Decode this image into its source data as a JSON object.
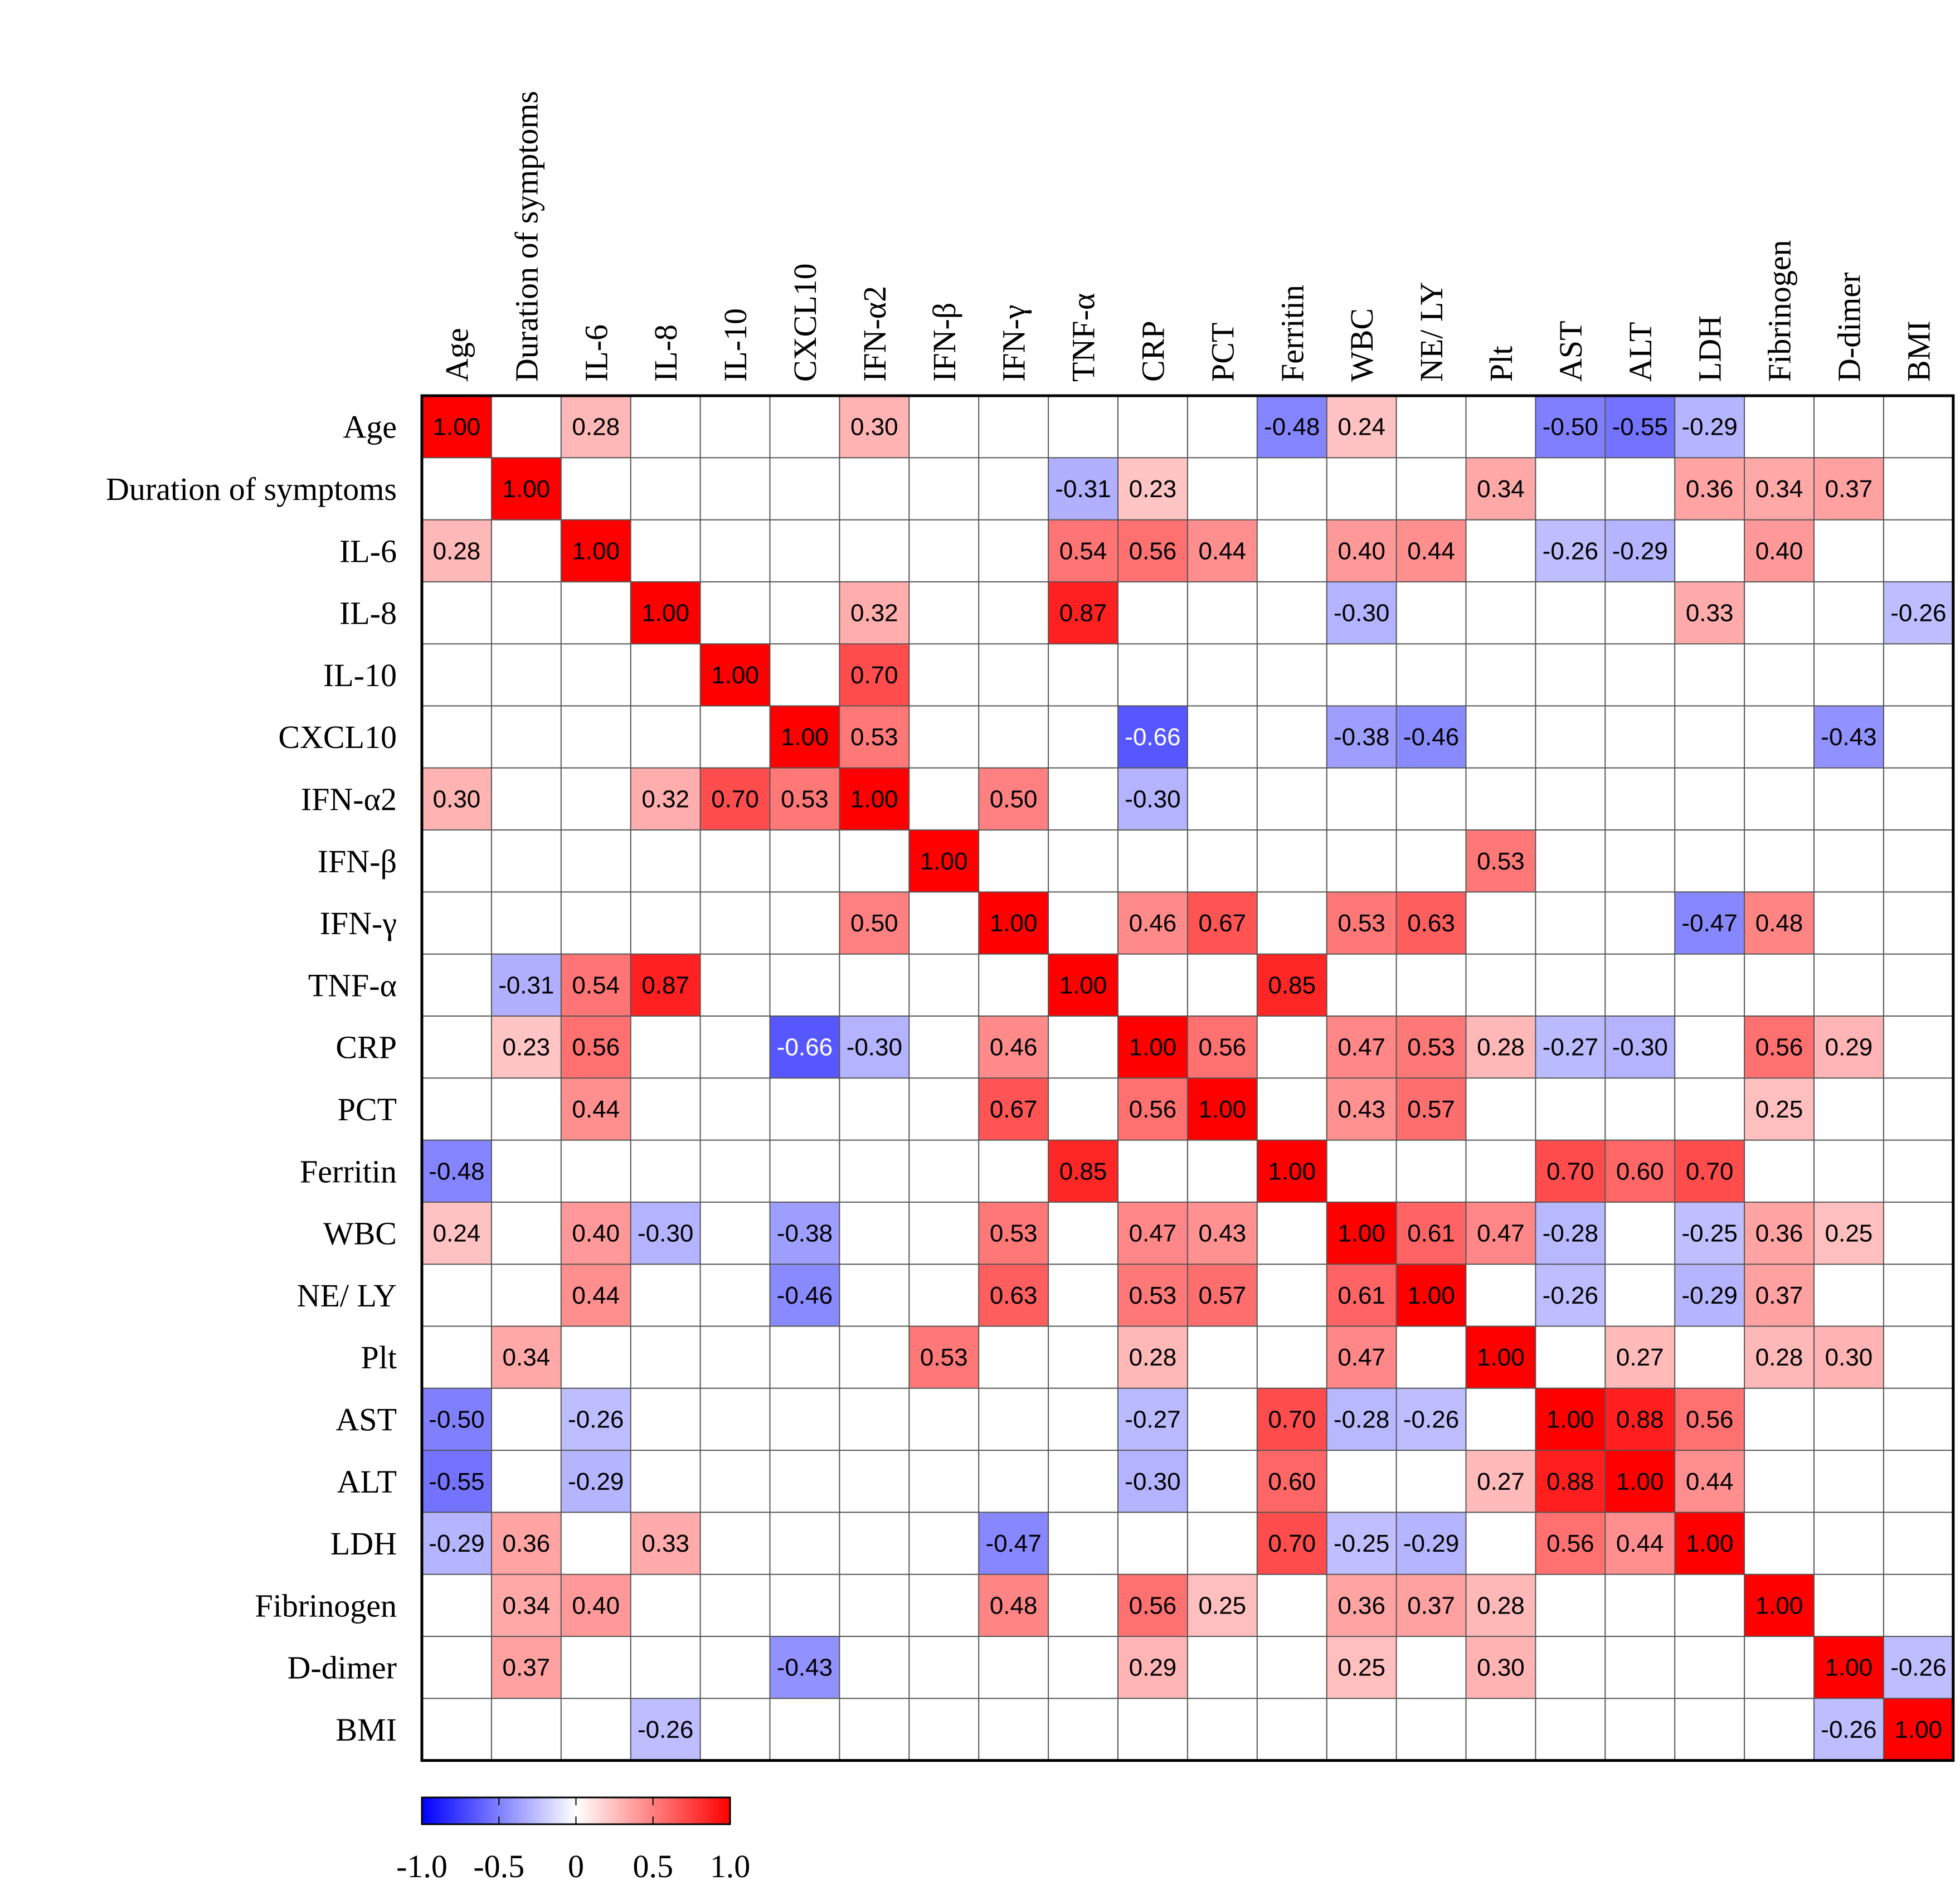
{
  "chart_data": {
    "type": "heatmap",
    "title": "",
    "labels": [
      "Age",
      "Duration of symptoms",
      "IL-6",
      "IL-8",
      "IL-10",
      "CXCL10",
      "IFN-α2",
      "IFN-β",
      "IFN-γ",
      "TNF-α",
      "CRP",
      "PCT",
      "Ferritin",
      "WBC",
      "NE/ LY",
      "Plt",
      "AST",
      "ALT",
      "LDH",
      "Fibrinogen",
      "D-dimer",
      "BMI"
    ],
    "cells": [
      {
        "row": 0,
        "col": 0,
        "value": 1.0
      },
      {
        "row": 0,
        "col": 2,
        "value": 0.28
      },
      {
        "row": 0,
        "col": 6,
        "value": 0.3
      },
      {
        "row": 0,
        "col": 12,
        "value": -0.48
      },
      {
        "row": 0,
        "col": 13,
        "value": 0.24
      },
      {
        "row": 0,
        "col": 16,
        "value": -0.5
      },
      {
        "row": 0,
        "col": 17,
        "value": -0.55
      },
      {
        "row": 0,
        "col": 18,
        "value": -0.29
      },
      {
        "row": 1,
        "col": 1,
        "value": 1.0
      },
      {
        "row": 1,
        "col": 9,
        "value": -0.31
      },
      {
        "row": 1,
        "col": 10,
        "value": 0.23
      },
      {
        "row": 1,
        "col": 15,
        "value": 0.34
      },
      {
        "row": 1,
        "col": 18,
        "value": 0.36
      },
      {
        "row": 1,
        "col": 19,
        "value": 0.34
      },
      {
        "row": 1,
        "col": 20,
        "value": 0.37
      },
      {
        "row": 2,
        "col": 0,
        "value": 0.28
      },
      {
        "row": 2,
        "col": 2,
        "value": 1.0
      },
      {
        "row": 2,
        "col": 9,
        "value": 0.54
      },
      {
        "row": 2,
        "col": 10,
        "value": 0.56
      },
      {
        "row": 2,
        "col": 11,
        "value": 0.44
      },
      {
        "row": 2,
        "col": 13,
        "value": 0.4
      },
      {
        "row": 2,
        "col": 14,
        "value": 0.44
      },
      {
        "row": 2,
        "col": 16,
        "value": -0.26
      },
      {
        "row": 2,
        "col": 17,
        "value": -0.29
      },
      {
        "row": 2,
        "col": 19,
        "value": 0.4
      },
      {
        "row": 3,
        "col": 3,
        "value": 1.0
      },
      {
        "row": 3,
        "col": 6,
        "value": 0.32
      },
      {
        "row": 3,
        "col": 9,
        "value": 0.87
      },
      {
        "row": 3,
        "col": 13,
        "value": -0.3
      },
      {
        "row": 3,
        "col": 18,
        "value": 0.33
      },
      {
        "row": 3,
        "col": 21,
        "value": -0.26
      },
      {
        "row": 4,
        "col": 4,
        "value": 1.0
      },
      {
        "row": 4,
        "col": 6,
        "value": 0.7
      },
      {
        "row": 5,
        "col": 5,
        "value": 1.0
      },
      {
        "row": 5,
        "col": 6,
        "value": 0.53
      },
      {
        "row": 5,
        "col": 10,
        "value": -0.66
      },
      {
        "row": 5,
        "col": 13,
        "value": -0.38
      },
      {
        "row": 5,
        "col": 14,
        "value": -0.46
      },
      {
        "row": 5,
        "col": 20,
        "value": -0.43
      },
      {
        "row": 6,
        "col": 0,
        "value": 0.3
      },
      {
        "row": 6,
        "col": 3,
        "value": 0.32
      },
      {
        "row": 6,
        "col": 4,
        "value": 0.7
      },
      {
        "row": 6,
        "col": 5,
        "value": 0.53
      },
      {
        "row": 6,
        "col": 6,
        "value": 1.0
      },
      {
        "row": 6,
        "col": 8,
        "value": 0.5
      },
      {
        "row": 6,
        "col": 10,
        "value": -0.3
      },
      {
        "row": 7,
        "col": 7,
        "value": 1.0
      },
      {
        "row": 7,
        "col": 15,
        "value": 0.53
      },
      {
        "row": 8,
        "col": 6,
        "value": 0.5
      },
      {
        "row": 8,
        "col": 8,
        "value": 1.0
      },
      {
        "row": 8,
        "col": 10,
        "value": 0.46
      },
      {
        "row": 8,
        "col": 11,
        "value": 0.67
      },
      {
        "row": 8,
        "col": 13,
        "value": 0.53
      },
      {
        "row": 8,
        "col": 14,
        "value": 0.63
      },
      {
        "row": 8,
        "col": 18,
        "value": -0.47
      },
      {
        "row": 8,
        "col": 19,
        "value": 0.48
      },
      {
        "row": 9,
        "col": 1,
        "value": -0.31
      },
      {
        "row": 9,
        "col": 2,
        "value": 0.54
      },
      {
        "row": 9,
        "col": 3,
        "value": 0.87
      },
      {
        "row": 9,
        "col": 9,
        "value": 1.0
      },
      {
        "row": 9,
        "col": 12,
        "value": 0.85
      },
      {
        "row": 10,
        "col": 1,
        "value": 0.23
      },
      {
        "row": 10,
        "col": 2,
        "value": 0.56
      },
      {
        "row": 10,
        "col": 5,
        "value": -0.66
      },
      {
        "row": 10,
        "col": 6,
        "value": -0.3
      },
      {
        "row": 10,
        "col": 8,
        "value": 0.46
      },
      {
        "row": 10,
        "col": 10,
        "value": 1.0
      },
      {
        "row": 10,
        "col": 11,
        "value": 0.56
      },
      {
        "row": 10,
        "col": 13,
        "value": 0.47
      },
      {
        "row": 10,
        "col": 14,
        "value": 0.53
      },
      {
        "row": 10,
        "col": 15,
        "value": 0.28
      },
      {
        "row": 10,
        "col": 16,
        "value": -0.27
      },
      {
        "row": 10,
        "col": 17,
        "value": -0.3
      },
      {
        "row": 10,
        "col": 19,
        "value": 0.56
      },
      {
        "row": 10,
        "col": 20,
        "value": 0.29
      },
      {
        "row": 11,
        "col": 2,
        "value": 0.44
      },
      {
        "row": 11,
        "col": 8,
        "value": 0.67
      },
      {
        "row": 11,
        "col": 10,
        "value": 0.56
      },
      {
        "row": 11,
        "col": 11,
        "value": 1.0
      },
      {
        "row": 11,
        "col": 13,
        "value": 0.43
      },
      {
        "row": 11,
        "col": 14,
        "value": 0.57
      },
      {
        "row": 11,
        "col": 19,
        "value": 0.25
      },
      {
        "row": 12,
        "col": 0,
        "value": -0.48
      },
      {
        "row": 12,
        "col": 9,
        "value": 0.85
      },
      {
        "row": 12,
        "col": 12,
        "value": 1.0
      },
      {
        "row": 12,
        "col": 16,
        "value": 0.7
      },
      {
        "row": 12,
        "col": 17,
        "value": 0.6
      },
      {
        "row": 12,
        "col": 18,
        "value": 0.7
      },
      {
        "row": 13,
        "col": 0,
        "value": 0.24
      },
      {
        "row": 13,
        "col": 2,
        "value": 0.4
      },
      {
        "row": 13,
        "col": 3,
        "value": -0.3
      },
      {
        "row": 13,
        "col": 5,
        "value": -0.38
      },
      {
        "row": 13,
        "col": 8,
        "value": 0.53
      },
      {
        "row": 13,
        "col": 10,
        "value": 0.47
      },
      {
        "row": 13,
        "col": 11,
        "value": 0.43
      },
      {
        "row": 13,
        "col": 13,
        "value": 1.0
      },
      {
        "row": 13,
        "col": 14,
        "value": 0.61
      },
      {
        "row": 13,
        "col": 15,
        "value": 0.47
      },
      {
        "row": 13,
        "col": 16,
        "value": -0.28
      },
      {
        "row": 13,
        "col": 18,
        "value": -0.25
      },
      {
        "row": 13,
        "col": 19,
        "value": 0.36
      },
      {
        "row": 13,
        "col": 20,
        "value": 0.25
      },
      {
        "row": 14,
        "col": 2,
        "value": 0.44
      },
      {
        "row": 14,
        "col": 5,
        "value": -0.46
      },
      {
        "row": 14,
        "col": 8,
        "value": 0.63
      },
      {
        "row": 14,
        "col": 10,
        "value": 0.53
      },
      {
        "row": 14,
        "col": 11,
        "value": 0.57
      },
      {
        "row": 14,
        "col": 13,
        "value": 0.61
      },
      {
        "row": 14,
        "col": 14,
        "value": 1.0
      },
      {
        "row": 14,
        "col": 16,
        "value": -0.26
      },
      {
        "row": 14,
        "col": 18,
        "value": -0.29
      },
      {
        "row": 14,
        "col": 19,
        "value": 0.37
      },
      {
        "row": 15,
        "col": 1,
        "value": 0.34
      },
      {
        "row": 15,
        "col": 7,
        "value": 0.53
      },
      {
        "row": 15,
        "col": 10,
        "value": 0.28
      },
      {
        "row": 15,
        "col": 13,
        "value": 0.47
      },
      {
        "row": 15,
        "col": 15,
        "value": 1.0
      },
      {
        "row": 15,
        "col": 17,
        "value": 0.27
      },
      {
        "row": 15,
        "col": 19,
        "value": 0.28
      },
      {
        "row": 15,
        "col": 20,
        "value": 0.3
      },
      {
        "row": 16,
        "col": 0,
        "value": -0.5
      },
      {
        "row": 16,
        "col": 2,
        "value": -0.26
      },
      {
        "row": 16,
        "col": 10,
        "value": -0.27
      },
      {
        "row": 16,
        "col": 12,
        "value": 0.7
      },
      {
        "row": 16,
        "col": 13,
        "value": -0.28
      },
      {
        "row": 16,
        "col": 14,
        "value": -0.26
      },
      {
        "row": 16,
        "col": 16,
        "value": 1.0
      },
      {
        "row": 16,
        "col": 17,
        "value": 0.88
      },
      {
        "row": 16,
        "col": 18,
        "value": 0.56
      },
      {
        "row": 17,
        "col": 0,
        "value": -0.55
      },
      {
        "row": 17,
        "col": 2,
        "value": -0.29
      },
      {
        "row": 17,
        "col": 10,
        "value": -0.3
      },
      {
        "row": 17,
        "col": 12,
        "value": 0.6
      },
      {
        "row": 17,
        "col": 15,
        "value": 0.27
      },
      {
        "row": 17,
        "col": 16,
        "value": 0.88
      },
      {
        "row": 17,
        "col": 17,
        "value": 1.0
      },
      {
        "row": 17,
        "col": 18,
        "value": 0.44
      },
      {
        "row": 18,
        "col": 0,
        "value": -0.29
      },
      {
        "row": 18,
        "col": 1,
        "value": 0.36
      },
      {
        "row": 18,
        "col": 3,
        "value": 0.33
      },
      {
        "row": 18,
        "col": 8,
        "value": -0.47
      },
      {
        "row": 18,
        "col": 12,
        "value": 0.7
      },
      {
        "row": 18,
        "col": 13,
        "value": -0.25
      },
      {
        "row": 18,
        "col": 14,
        "value": -0.29
      },
      {
        "row": 18,
        "col": 16,
        "value": 0.56
      },
      {
        "row": 18,
        "col": 17,
        "value": 0.44
      },
      {
        "row": 18,
        "col": 18,
        "value": 1.0
      },
      {
        "row": 19,
        "col": 1,
        "value": 0.34
      },
      {
        "row": 19,
        "col": 2,
        "value": 0.4
      },
      {
        "row": 19,
        "col": 8,
        "value": 0.48
      },
      {
        "row": 19,
        "col": 10,
        "value": 0.56
      },
      {
        "row": 19,
        "col": 11,
        "value": 0.25
      },
      {
        "row": 19,
        "col": 13,
        "value": 0.36
      },
      {
        "row": 19,
        "col": 14,
        "value": 0.37
      },
      {
        "row": 19,
        "col": 15,
        "value": 0.28
      },
      {
        "row": 19,
        "col": 19,
        "value": 1.0
      },
      {
        "row": 20,
        "col": 1,
        "value": 0.37
      },
      {
        "row": 20,
        "col": 5,
        "value": -0.43
      },
      {
        "row": 20,
        "col": 10,
        "value": 0.29
      },
      {
        "row": 20,
        "col": 13,
        "value": 0.25
      },
      {
        "row": 20,
        "col": 15,
        "value": 0.3
      },
      {
        "row": 20,
        "col": 20,
        "value": 1.0
      },
      {
        "row": 20,
        "col": 21,
        "value": -0.26
      },
      {
        "row": 21,
        "col": 3,
        "value": -0.26
      },
      {
        "row": 21,
        "col": 20,
        "value": -0.26
      },
      {
        "row": 21,
        "col": 21,
        "value": 1.0
      }
    ],
    "colorbar": {
      "range": [
        -1.0,
        1.0
      ],
      "ticks": [
        -1.0,
        -0.5,
        0,
        0.5,
        1.0
      ],
      "tick_labels": [
        "-1.0",
        "-0.5",
        "0",
        "0.5",
        "1.0"
      ],
      "low_color": "#0000ff",
      "mid_color": "#ffffff",
      "high_color": "#ff0000"
    }
  }
}
